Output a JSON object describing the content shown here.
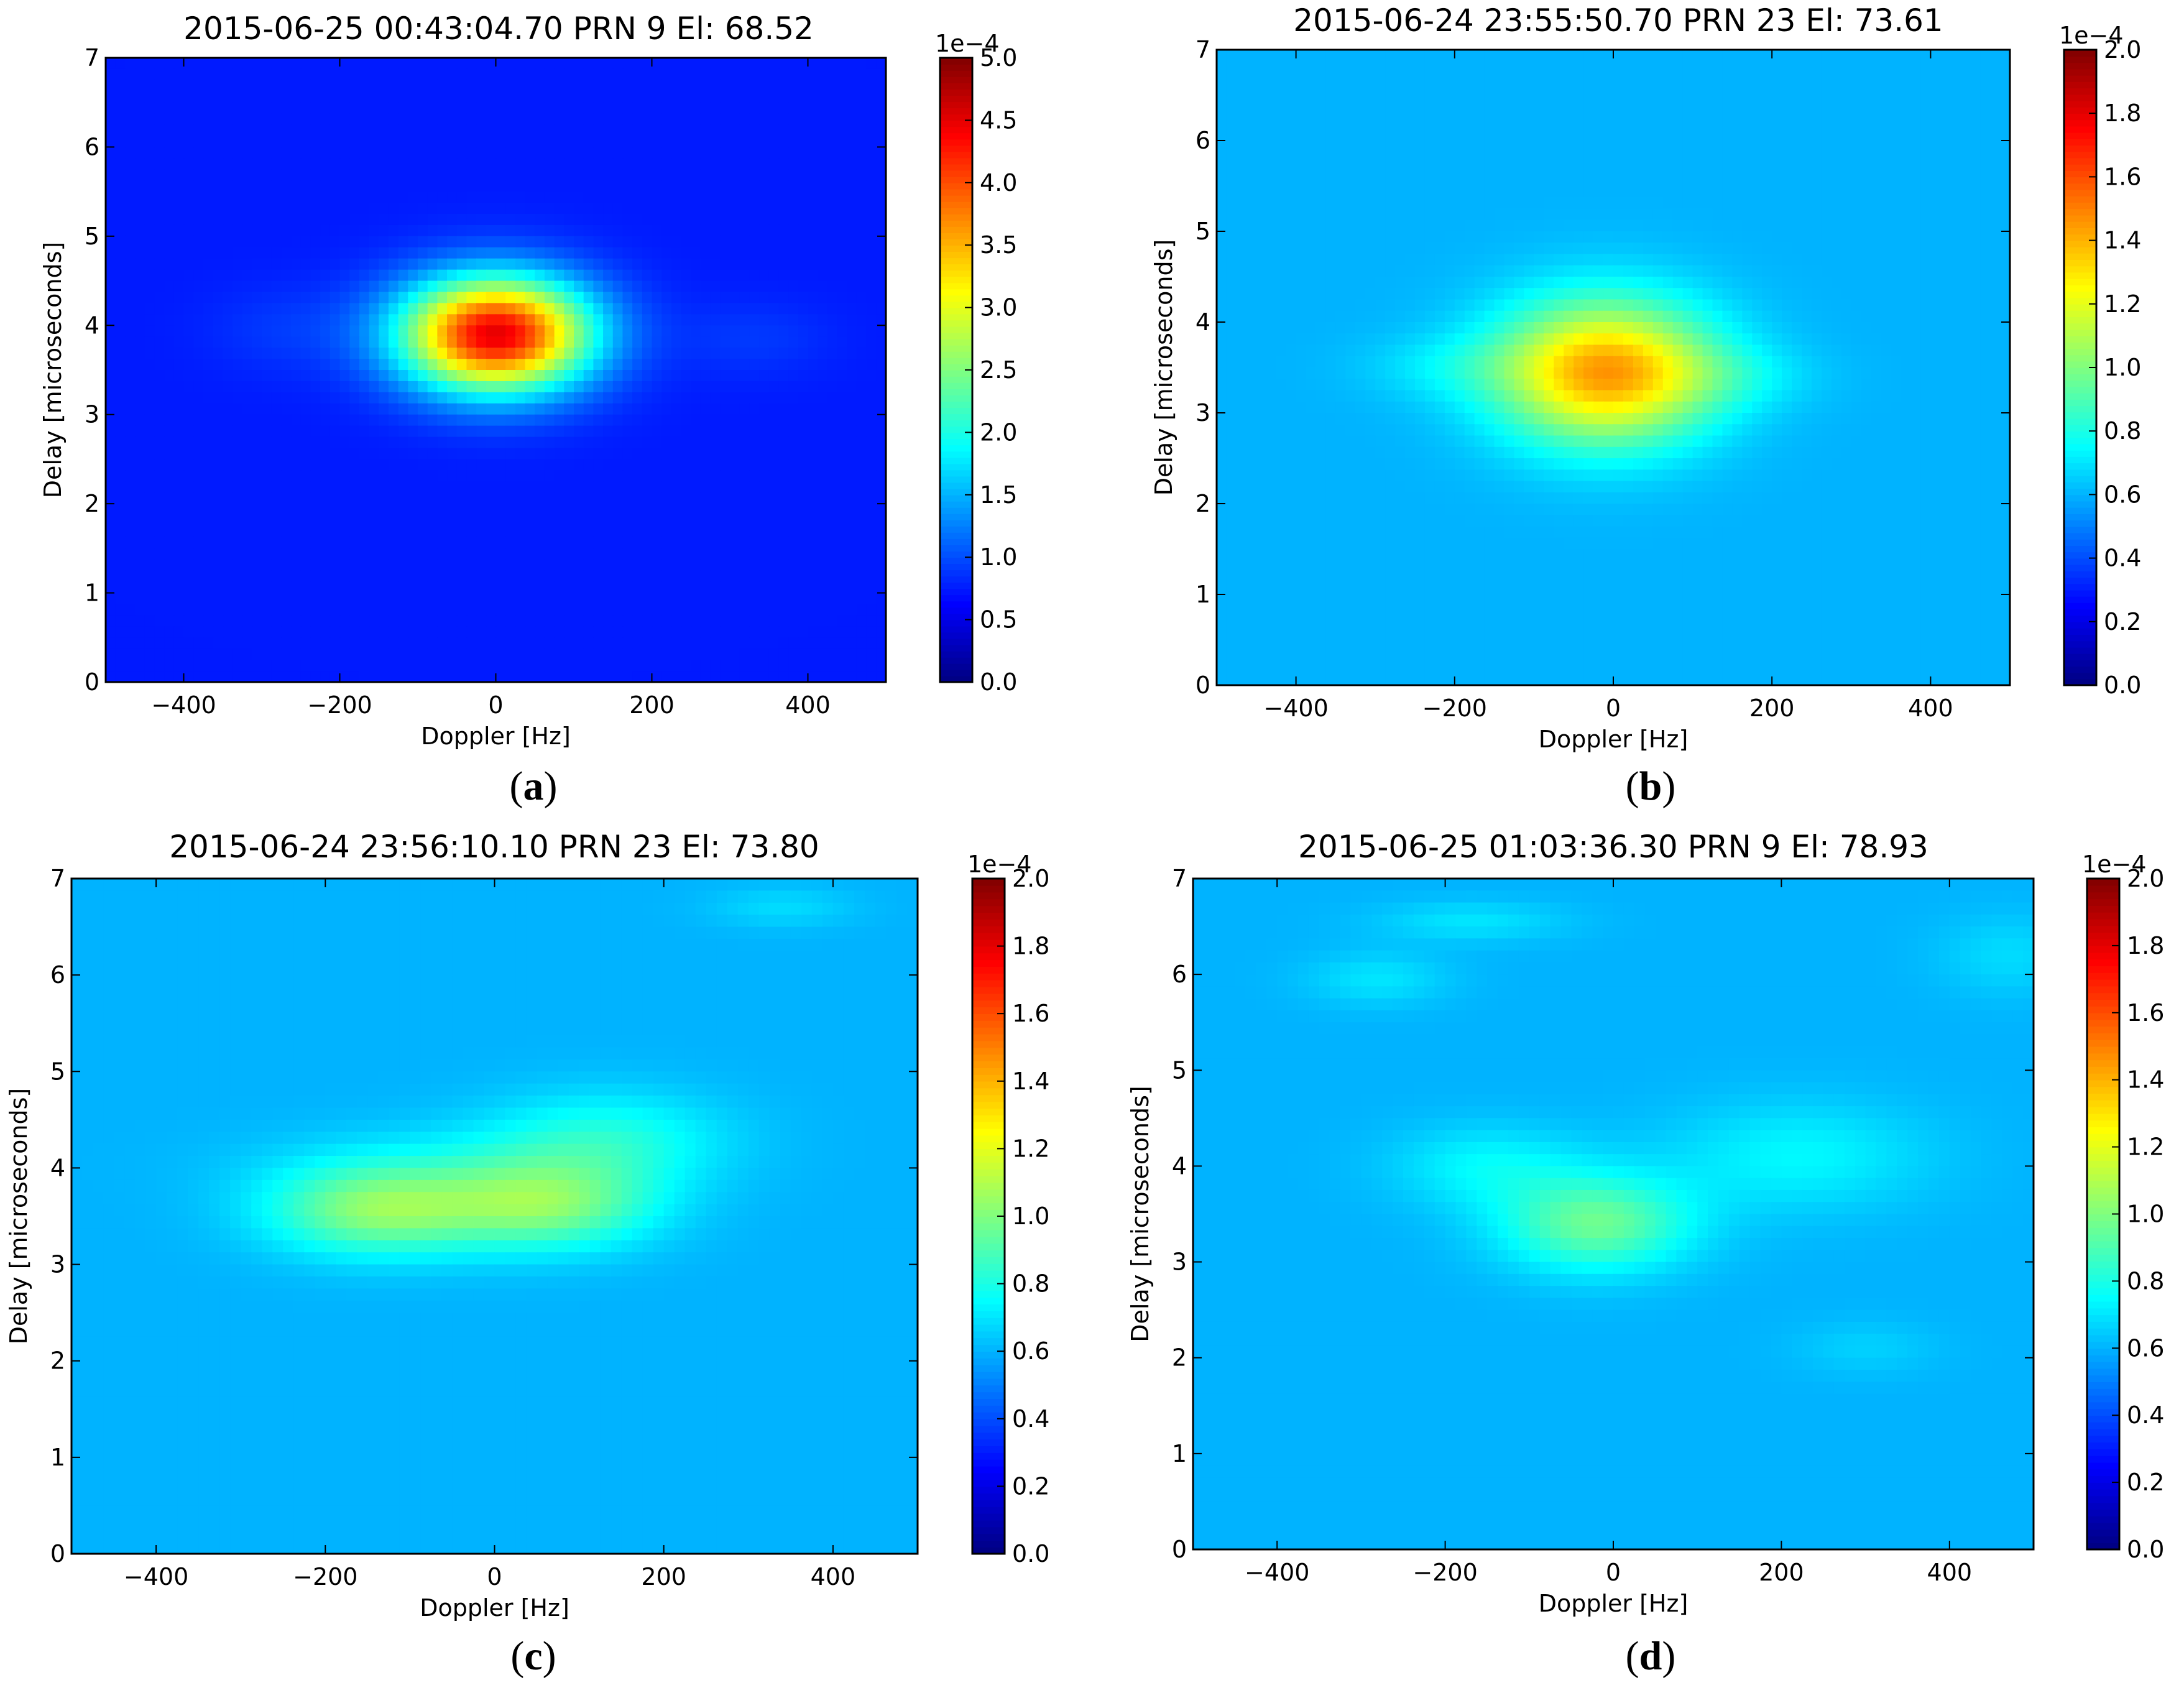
{
  "chart_data": [
    {
      "type": "heatmap",
      "panel_label": "(a)",
      "title": "2015-06-25 00:43:04.70 PRN 9 El: 68.52",
      "xlabel": "Doppler [Hz]",
      "ylabel": "Delay [microseconds]",
      "xlim": [
        -500,
        500
      ],
      "ylim": [
        0,
        7
      ],
      "xticks": [
        "-400",
        "-200",
        "0",
        "200",
        "400"
      ],
      "yticks": [
        "0",
        "1",
        "2",
        "3",
        "4",
        "5",
        "6",
        "7"
      ],
      "colorbar": {
        "multiplier": "1e-4",
        "range": [
          0.0,
          5.0
        ],
        "ticks": [
          "0.0",
          "0.5",
          "1.0",
          "1.5",
          "2.0",
          "2.5",
          "3.0",
          "3.5",
          "4.0",
          "4.5",
          "5.0"
        ]
      },
      "background_level": 0.15,
      "blobs": [
        {
          "x": 0,
          "y": 3.9,
          "sx": 85,
          "sy": 0.45,
          "amp": 0.75
        },
        {
          "x": -270,
          "y": 3.95,
          "sx": 70,
          "sy": 0.35,
          "amp": 0.03
        },
        {
          "x": 330,
          "y": 3.85,
          "sx": 70,
          "sy": 0.3,
          "amp": 0.03
        }
      ]
    },
    {
      "type": "heatmap",
      "panel_label": "(b)",
      "title": "2015-06-24 23:55:50.70 PRN 23 El: 73.61",
      "xlabel": "Doppler [Hz]",
      "ylabel": "Delay [microseconds]",
      "xlim": [
        -500,
        500
      ],
      "ylim": [
        0,
        7
      ],
      "xticks": [
        "-400",
        "-200",
        "0",
        "200",
        "400"
      ],
      "yticks": [
        "0",
        "1",
        "2",
        "3",
        "4",
        "5",
        "6",
        "7"
      ],
      "colorbar": {
        "multiplier": "1e-4",
        "range": [
          0.0,
          2.0
        ],
        "ticks": [
          "0.0",
          "0.2",
          "0.4",
          "0.6",
          "0.8",
          "1.0",
          "1.2",
          "1.4",
          "1.6",
          "1.8",
          "2.0"
        ]
      },
      "background_level": 0.3,
      "blobs": [
        {
          "x": -10,
          "y": 3.45,
          "sx": 95,
          "sy": 0.55,
          "amp": 0.42
        },
        {
          "x": -200,
          "y": 3.5,
          "sx": 80,
          "sy": 0.25,
          "amp": 0.05
        },
        {
          "x": 140,
          "y": 3.4,
          "sx": 80,
          "sy": 0.25,
          "amp": 0.05
        }
      ]
    },
    {
      "type": "heatmap",
      "panel_label": "(c)",
      "title": "2015-06-24 23:56:10.10 PRN 23 El: 73.80",
      "xlabel": "Doppler [Hz]",
      "ylabel": "Delay [microseconds]",
      "xlim": [
        -500,
        500
      ],
      "ylim": [
        0,
        7
      ],
      "xticks": [
        "-400",
        "-200",
        "0",
        "200",
        "400"
      ],
      "yticks": [
        "0",
        "1",
        "2",
        "3",
        "4",
        "5",
        "6",
        "7"
      ],
      "colorbar": {
        "multiplier": "1e-4",
        "range": [
          0.0,
          2.0
        ],
        "ticks": [
          "0.0",
          "0.2",
          "0.4",
          "0.6",
          "0.8",
          "1.0",
          "1.2",
          "1.4",
          "1.6",
          "1.8",
          "2.0"
        ]
      },
      "background_level": 0.3,
      "blobs": [
        {
          "x": -140,
          "y": 3.55,
          "sx": 90,
          "sy": 0.32,
          "amp": 0.2
        },
        {
          "x": 60,
          "y": 3.6,
          "sx": 90,
          "sy": 0.32,
          "amp": 0.19
        },
        {
          "x": 130,
          "y": 4.3,
          "sx": 100,
          "sy": 0.35,
          "amp": 0.1
        },
        {
          "x": -60,
          "y": 4.0,
          "sx": 150,
          "sy": 0.3,
          "amp": 0.05
        },
        {
          "x": 340,
          "y": 6.7,
          "sx": 60,
          "sy": 0.15,
          "amp": 0.04
        }
      ]
    },
    {
      "type": "heatmap",
      "panel_label": "(d)",
      "title": "2015-06-25 01:03:36.30 PRN 9 El: 78.93",
      "xlabel": "Doppler [Hz]",
      "ylabel": "Delay [microseconds]",
      "xlim": [
        -500,
        500
      ],
      "ylim": [
        0,
        7
      ],
      "xticks": [
        "-400",
        "-200",
        "0",
        "200",
        "400"
      ],
      "yticks": [
        "0",
        "1",
        "2",
        "3",
        "4",
        "5",
        "6",
        "7"
      ],
      "colorbar": {
        "multiplier": "1e-4",
        "range": [
          0.0,
          2.0
        ],
        "ticks": [
          "0.0",
          "0.2",
          "0.4",
          "0.6",
          "0.8",
          "1.0",
          "1.2",
          "1.4",
          "1.6",
          "1.8",
          "2.0"
        ]
      },
      "background_level": 0.3,
      "blobs": [
        {
          "x": -20,
          "y": 3.4,
          "sx": 80,
          "sy": 0.35,
          "amp": 0.18
        },
        {
          "x": -150,
          "y": 4.0,
          "sx": 80,
          "sy": 0.3,
          "amp": 0.07
        },
        {
          "x": 220,
          "y": 4.1,
          "sx": 110,
          "sy": 0.4,
          "amp": 0.07
        },
        {
          "x": -280,
          "y": 5.95,
          "sx": 60,
          "sy": 0.2,
          "amp": 0.05
        },
        {
          "x": -170,
          "y": 6.55,
          "sx": 80,
          "sy": 0.15,
          "amp": 0.05
        },
        {
          "x": 300,
          "y": 2.1,
          "sx": 60,
          "sy": 0.2,
          "amp": 0.03
        },
        {
          "x": 470,
          "y": 6.2,
          "sx": 60,
          "sy": 0.3,
          "amp": 0.04
        }
      ]
    }
  ]
}
